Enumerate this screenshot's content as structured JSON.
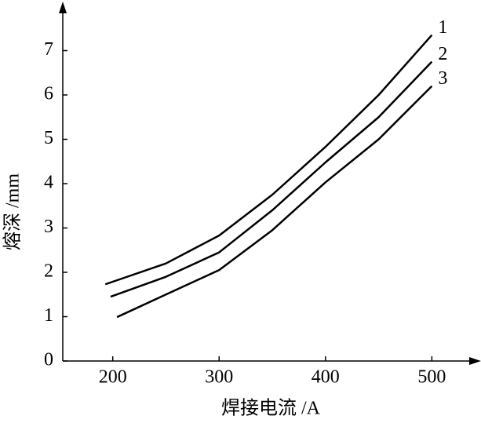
{
  "chart_data": {
    "type": "line",
    "x_label": "焊接电流 /A",
    "y_label": "熔深 /mm",
    "series": [
      {
        "name": "1",
        "color": "#000000",
        "x": [
          193,
          250,
          300,
          350,
          400,
          450,
          500
        ],
        "values": [
          1.73,
          2.2,
          2.83,
          3.75,
          4.83,
          6.0,
          7.35
        ]
      },
      {
        "name": "2",
        "color": "#000000",
        "x": [
          198,
          250,
          300,
          350,
          400,
          450,
          500
        ],
        "values": [
          1.45,
          1.9,
          2.45,
          3.4,
          4.48,
          5.5,
          6.75
        ]
      },
      {
        "name": "3",
        "color": "#000000",
        "x": [
          204,
          250,
          300,
          350,
          400,
          450,
          500
        ],
        "values": [
          0.99,
          1.5,
          2.05,
          2.95,
          4.03,
          5.0,
          6.2
        ]
      }
    ],
    "xlim": [
      153,
      544
    ],
    "xticks": [
      200,
      300,
      400,
      500
    ],
    "ylim": [
      0,
      8
    ],
    "yticks": [
      0,
      1,
      2,
      3,
      4,
      5,
      6,
      7
    ],
    "grid": false
  }
}
